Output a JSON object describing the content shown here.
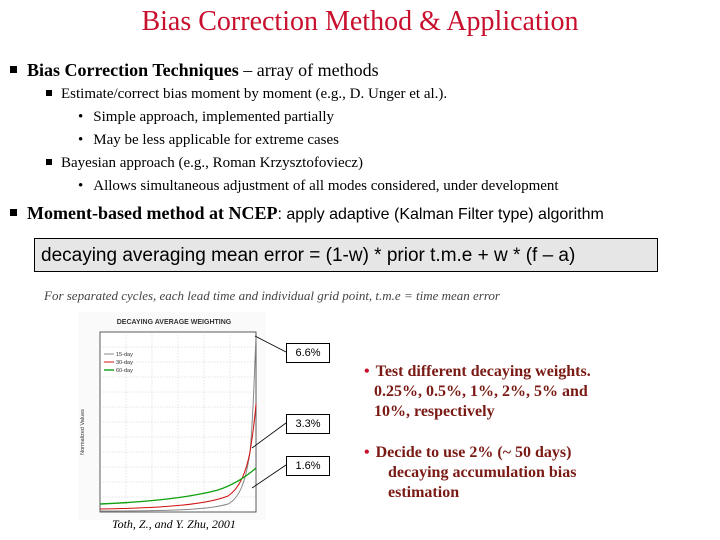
{
  "title": "Bias Correction Method & Application",
  "bullets": {
    "b1_bold": "Bias Correction Techniques",
    "b1_rest": " – array of methods",
    "b1_1": "Estimate/correct bias moment by moment (e.g., D. Unger et al.).",
    "b1_1_1": "Simple approach, implemented partially",
    "b1_1_2": "May be less applicable for extreme cases",
    "b1_2": "Bayesian approach (e.g., Roman Krzysztofoviecz)",
    "b1_2_1": "Allows simultaneous adjustment of all modes considered,  under development",
    "b2_bold": "Moment-based method at NCEP",
    "b2_rest": ": apply adaptive (Kalman Filter type) algorithm"
  },
  "formula": "decaying averaging mean error = (1-w) * prior t.m.e + w * (f – a)",
  "note": "For separated cycles, each lead time and individual grid point, t.m.e = time mean error",
  "chart_data": {
    "type": "line",
    "title": "DECAYING AVERAGE WEIGHTING",
    "ylabel": "Normalized Values",
    "series": [
      {
        "name": "15-day",
        "color": "#888888"
      },
      {
        "name": "30-day",
        "color": "#d01010"
      },
      {
        "name": "60-day",
        "color": "#10a010"
      }
    ],
    "callouts": [
      "6.6%",
      "3.3%",
      "1.6%"
    ],
    "citation": "Toth, Z., and Y. Zhu, 2001"
  },
  "right": {
    "p1_bullet": "•",
    "p1_line1": "Test different decaying weights.",
    "p1_line2": "0.25%, 0.5%, 1%, 2%, 5% and",
    "p1_line3": "10%, respectively",
    "p2_bullet": "•",
    "p2_line1": "Decide to use 2% (~ 50 days)",
    "p2_line2": "decaying accumulation bias",
    "p2_line3": "estimation"
  }
}
